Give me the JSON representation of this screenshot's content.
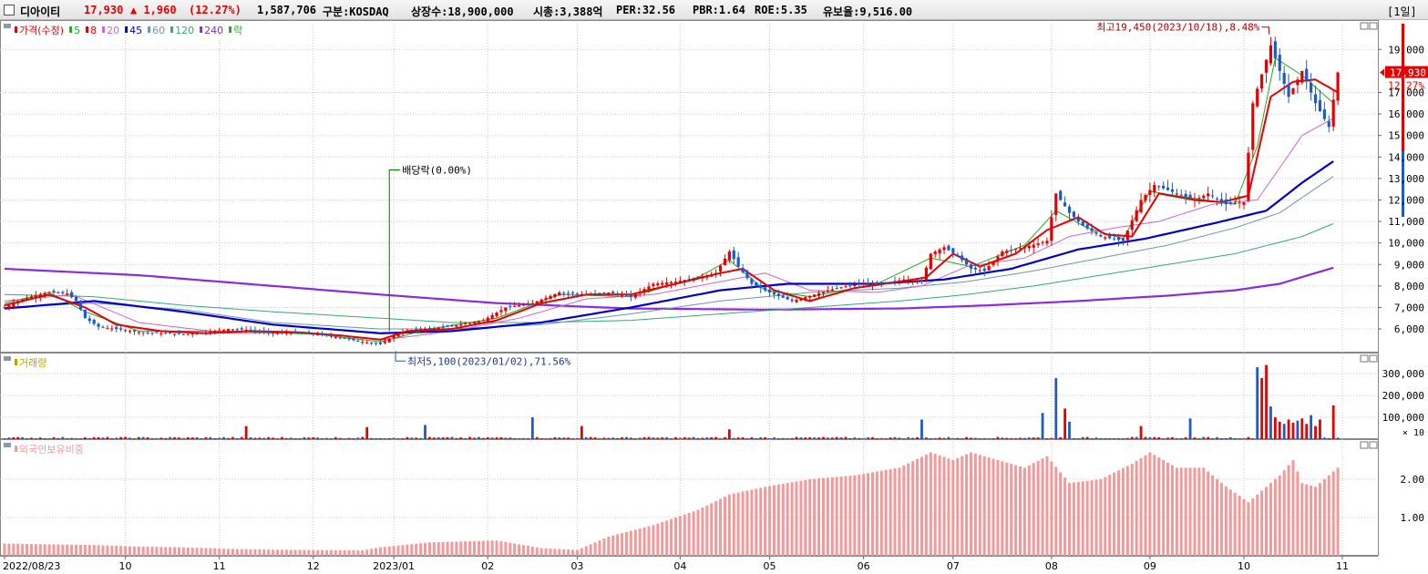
{
  "header": {
    "name": "디아이티",
    "price": "17,930",
    "change": "▲ 1,960",
    "change_pct": "(12.27%)",
    "volume": "1,587,706",
    "market": "구분:KOSDAQ",
    "listed": "상장수:18,900,000",
    "mcap": "시총:3,388억",
    "per": "PER:32.56",
    "pbr": "PBR:1.64",
    "roe": "ROE:5.35",
    "float": "유보율:9,516.00",
    "period": "[1일]"
  },
  "colors": {
    "up": "#e60000",
    "down": "#1e5bc6",
    "ma5": "#22aa22",
    "ma8": "#e60000",
    "ma20": "#cc66cc",
    "ma45": "#0000cc",
    "ma60": "#6699aa",
    "ma120": "#33aa77",
    "ma240": "#8a2be2",
    "foreign": "#f29a9a",
    "grid": "#c8c8c8"
  },
  "chart_data": [
    {
      "type": "line",
      "name": "price",
      "legend": [
        {
          "label": "가격(수정)",
          "color": "#e60000"
        },
        {
          "label": "5",
          "color": "#22aa22"
        },
        {
          "label": "8",
          "color": "#e60000"
        },
        {
          "label": "20",
          "color": "#cc66cc"
        },
        {
          "label": "45",
          "color": "#0000cc"
        },
        {
          "label": "60",
          "color": "#6699aa"
        },
        {
          "label": "120",
          "color": "#33aa77"
        },
        {
          "label": "240",
          "color": "#8a2be2"
        },
        {
          "label": "락",
          "color": "#22aa22"
        }
      ],
      "y_ticks": [
        6000,
        7000,
        8000,
        9000,
        10000,
        11000,
        12000,
        13000,
        14000,
        15000,
        16000,
        17000,
        19000
      ],
      "y_tick_labels": [
        "6,000",
        "7,000",
        "8,000",
        "9,000",
        "10,000",
        "11,000",
        "12,000",
        "13,000",
        "14,000",
        "15,000",
        "16,000",
        "17,000",
        "19,000"
      ],
      "ylim": [
        4900,
        20200
      ],
      "last_price": 17930,
      "last_label": "17,930",
      "last_pct_label": "12.27%",
      "high_annotation": {
        "text": "최고19,450(2023/10/18),8.48%",
        "value": 19450
      },
      "low_annotation": {
        "text": "최저5,100(2023/01/02),71.56%",
        "value": 5100
      },
      "event_annotation": {
        "text": "배당락(0.00%)"
      },
      "price_path": [
        [
          0,
          7000
        ],
        [
          3,
          7300
        ],
        [
          6,
          7500
        ],
        [
          10,
          7700
        ],
        [
          14,
          7650
        ],
        [
          16,
          7300
        ],
        [
          18,
          6500
        ],
        [
          21,
          6100
        ],
        [
          25,
          6000
        ],
        [
          30,
          5850
        ],
        [
          35,
          5800
        ],
        [
          40,
          5750
        ],
        [
          45,
          5850
        ],
        [
          50,
          6000
        ],
        [
          55,
          5950
        ],
        [
          60,
          5800
        ],
        [
          65,
          5850
        ],
        [
          70,
          5750
        ],
        [
          75,
          5600
        ],
        [
          80,
          5400
        ],
        [
          84,
          5300
        ],
        [
          88,
          5800
        ],
        [
          92,
          6000
        ],
        [
          97,
          6050
        ],
        [
          102,
          6200
        ],
        [
          107,
          6400
        ],
        [
          112,
          7000
        ],
        [
          118,
          7200
        ],
        [
          124,
          7700
        ],
        [
          130,
          7600
        ],
        [
          135,
          7700
        ],
        [
          140,
          7500
        ],
        [
          145,
          8100
        ],
        [
          150,
          8200
        ],
        [
          155,
          8400
        ],
        [
          159,
          8600
        ],
        [
          162,
          9600
        ],
        [
          164,
          8900
        ],
        [
          167,
          8100
        ],
        [
          172,
          7600
        ],
        [
          176,
          7300
        ],
        [
          181,
          7600
        ],
        [
          186,
          7900
        ],
        [
          191,
          8100
        ],
        [
          196,
          8100
        ],
        [
          201,
          8300
        ],
        [
          205,
          8200
        ],
        [
          207,
          9500
        ],
        [
          210,
          9800
        ],
        [
          213,
          9400
        ],
        [
          216,
          8800
        ],
        [
          219,
          8700
        ],
        [
          223,
          9600
        ],
        [
          228,
          9800
        ],
        [
          233,
          10100
        ],
        [
          235,
          12300
        ],
        [
          238,
          11400
        ],
        [
          241,
          10800
        ],
        [
          245,
          10300
        ],
        [
          250,
          10100
        ],
        [
          254,
          12000
        ],
        [
          257,
          12700
        ],
        [
          262,
          12300
        ],
        [
          266,
          12000
        ],
        [
          269,
          12300
        ],
        [
          273,
          11800
        ],
        [
          277,
          11900
        ],
        [
          279,
          16500
        ],
        [
          283,
          19200
        ],
        [
          287,
          16800
        ],
        [
          290,
          18000
        ],
        [
          293,
          16500
        ],
        [
          296,
          15400
        ],
        [
          298,
          17930
        ]
      ],
      "ma8_path": [
        [
          0,
          7100
        ],
        [
          10,
          7600
        ],
        [
          18,
          7000
        ],
        [
          25,
          6200
        ],
        [
          35,
          5900
        ],
        [
          45,
          5800
        ],
        [
          55,
          5900
        ],
        [
          65,
          5850
        ],
        [
          75,
          5700
        ],
        [
          84,
          5500
        ],
        [
          90,
          5900
        ],
        [
          100,
          6000
        ],
        [
          110,
          6400
        ],
        [
          120,
          7200
        ],
        [
          130,
          7600
        ],
        [
          140,
          7600
        ],
        [
          150,
          8100
        ],
        [
          160,
          8600
        ],
        [
          165,
          8800
        ],
        [
          172,
          7800
        ],
        [
          180,
          7300
        ],
        [
          190,
          7900
        ],
        [
          200,
          8200
        ],
        [
          206,
          8400
        ],
        [
          212,
          9500
        ],
        [
          218,
          8900
        ],
        [
          226,
          9500
        ],
        [
          233,
          10600
        ],
        [
          240,
          11200
        ],
        [
          246,
          10400
        ],
        [
          252,
          10300
        ],
        [
          258,
          12300
        ],
        [
          266,
          12000
        ],
        [
          272,
          11900
        ],
        [
          278,
          12200
        ],
        [
          283,
          16800
        ],
        [
          288,
          17500
        ],
        [
          293,
          17600
        ],
        [
          298,
          17000
        ]
      ],
      "ma5_path": [
        [
          0,
          7200
        ],
        [
          10,
          7700
        ],
        [
          18,
          6800
        ],
        [
          30,
          5900
        ],
        [
          50,
          5900
        ],
        [
          70,
          5750
        ],
        [
          84,
          5400
        ],
        [
          95,
          6000
        ],
        [
          110,
          6500
        ],
        [
          124,
          7600
        ],
        [
          140,
          7500
        ],
        [
          155,
          8400
        ],
        [
          162,
          9200
        ],
        [
          170,
          7800
        ],
        [
          180,
          7500
        ],
        [
          195,
          8100
        ],
        [
          207,
          9300
        ],
        [
          216,
          8900
        ],
        [
          228,
          9900
        ],
        [
          235,
          11500
        ],
        [
          242,
          10700
        ],
        [
          250,
          10200
        ],
        [
          256,
          12400
        ],
        [
          265,
          12100
        ],
        [
          275,
          11800
        ],
        [
          280,
          14500
        ],
        [
          284,
          18600
        ],
        [
          290,
          17800
        ],
        [
          297,
          16500
        ]
      ],
      "ma20_path": [
        [
          0,
          7300
        ],
        [
          15,
          7600
        ],
        [
          30,
          6300
        ],
        [
          50,
          5800
        ],
        [
          70,
          5800
        ],
        [
          85,
          5500
        ],
        [
          100,
          5900
        ],
        [
          115,
          6500
        ],
        [
          130,
          7400
        ],
        [
          145,
          7600
        ],
        [
          160,
          8200
        ],
        [
          170,
          8600
        ],
        [
          180,
          7800
        ],
        [
          195,
          7700
        ],
        [
          205,
          8000
        ],
        [
          215,
          8900
        ],
        [
          228,
          9300
        ],
        [
          238,
          10300
        ],
        [
          248,
          10700
        ],
        [
          258,
          11000
        ],
        [
          270,
          11800
        ],
        [
          280,
          12000
        ],
        [
          290,
          15000
        ],
        [
          297,
          15800
        ]
      ],
      "ma45_path": [
        [
          0,
          6950
        ],
        [
          20,
          7300
        ],
        [
          40,
          6800
        ],
        [
          60,
          6200
        ],
        [
          84,
          5800
        ],
        [
          100,
          5900
        ],
        [
          120,
          6300
        ],
        [
          140,
          7000
        ],
        [
          160,
          7800
        ],
        [
          175,
          8100
        ],
        [
          195,
          8100
        ],
        [
          210,
          8300
        ],
        [
          225,
          8800
        ],
        [
          240,
          9700
        ],
        [
          255,
          10200
        ],
        [
          270,
          10900
        ],
        [
          282,
          11500
        ],
        [
          290,
          12800
        ],
        [
          297,
          13800
        ]
      ],
      "ma60_path": [
        [
          0,
          7000
        ],
        [
          20,
          7200
        ],
        [
          40,
          6900
        ],
        [
          60,
          6300
        ],
        [
          84,
          6000
        ],
        [
          100,
          6000
        ],
        [
          120,
          6200
        ],
        [
          140,
          6700
        ],
        [
          160,
          7300
        ],
        [
          180,
          7700
        ],
        [
          200,
          7900
        ],
        [
          215,
          8200
        ],
        [
          230,
          8700
        ],
        [
          245,
          9300
        ],
        [
          260,
          9900
        ],
        [
          275,
          10700
        ],
        [
          285,
          11400
        ],
        [
          297,
          13100
        ]
      ],
      "ma120_path": [
        [
          0,
          7600
        ],
        [
          20,
          7500
        ],
        [
          40,
          7100
        ],
        [
          60,
          6800
        ],
        [
          84,
          6500
        ],
        [
          100,
          6300
        ],
        [
          120,
          6300
        ],
        [
          140,
          6400
        ],
        [
          160,
          6700
        ],
        [
          180,
          7000
        ],
        [
          200,
          7300
        ],
        [
          215,
          7600
        ],
        [
          230,
          8000
        ],
        [
          245,
          8500
        ],
        [
          260,
          9000
        ],
        [
          275,
          9500
        ],
        [
          290,
          10300
        ],
        [
          297,
          10900
        ]
      ],
      "ma240_path": [
        [
          0,
          8800
        ],
        [
          30,
          8500
        ],
        [
          60,
          8000
        ],
        [
          84,
          7600
        ],
        [
          110,
          7200
        ],
        [
          140,
          6950
        ],
        [
          170,
          6900
        ],
        [
          200,
          6950
        ],
        [
          220,
          7100
        ],
        [
          240,
          7300
        ],
        [
          260,
          7550
        ],
        [
          275,
          7800
        ],
        [
          285,
          8100
        ],
        [
          297,
          8850
        ]
      ]
    },
    {
      "type": "bar",
      "name": "volume",
      "legend": [
        {
          "label": "거래량",
          "color": "#bba000"
        }
      ],
      "y_ticks": [
        100000,
        200000,
        300000
      ],
      "y_tick_labels": [
        "100,000",
        "200,000",
        "300,000"
      ],
      "unit_label": "× 10",
      "ylim": [
        0,
        380000
      ],
      "base_volume": 8000,
      "spikes": [
        [
          54,
          60000
        ],
        [
          81,
          55000
        ],
        [
          94,
          65000
        ],
        [
          118,
          100000
        ],
        [
          129,
          60000
        ],
        [
          162,
          45000
        ],
        [
          205,
          90000
        ],
        [
          232,
          120000
        ],
        [
          235,
          280000
        ],
        [
          237,
          140000
        ],
        [
          238,
          80000
        ],
        [
          254,
          60000
        ],
        [
          265,
          95000
        ],
        [
          280,
          330000
        ],
        [
          281,
          280000
        ],
        [
          282,
          340000
        ],
        [
          283,
          150000
        ],
        [
          284,
          100000
        ],
        [
          285,
          80000
        ],
        [
          286,
          70000
        ],
        [
          287,
          90000
        ],
        [
          288,
          75000
        ],
        [
          289,
          85000
        ],
        [
          290,
          95000
        ],
        [
          291,
          70000
        ],
        [
          292,
          110000
        ],
        [
          293,
          60000
        ],
        [
          294,
          90000
        ],
        [
          297,
          155000
        ]
      ]
    },
    {
      "type": "bar",
      "name": "foreign_ownership",
      "legend": [
        {
          "label": "외국인보유비중",
          "color": "#f29a9a"
        }
      ],
      "y_ticks": [
        1.0,
        2.0
      ],
      "y_tick_labels": [
        "1.00",
        "2.00"
      ],
      "ylim": [
        0,
        2.95
      ],
      "level_path": [
        [
          0,
          0.32
        ],
        [
          10,
          0.3
        ],
        [
          20,
          0.28
        ],
        [
          30,
          0.24
        ],
        [
          40,
          0.22
        ],
        [
          50,
          0.18
        ],
        [
          60,
          0.16
        ],
        [
          70,
          0.15
        ],
        [
          80,
          0.14
        ],
        [
          84,
          0.22
        ],
        [
          95,
          0.35
        ],
        [
          110,
          0.4
        ],
        [
          120,
          0.2
        ],
        [
          128,
          0.15
        ],
        [
          135,
          0.5
        ],
        [
          145,
          0.8
        ],
        [
          155,
          1.2
        ],
        [
          162,
          1.6
        ],
        [
          170,
          1.8
        ],
        [
          180,
          2.0
        ],
        [
          190,
          2.1
        ],
        [
          200,
          2.3
        ],
        [
          207,
          2.7
        ],
        [
          212,
          2.5
        ],
        [
          216,
          2.7
        ],
        [
          222,
          2.5
        ],
        [
          228,
          2.3
        ],
        [
          233,
          2.6
        ],
        [
          238,
          1.9
        ],
        [
          245,
          2.0
        ],
        [
          252,
          2.4
        ],
        [
          256,
          2.7
        ],
        [
          262,
          2.3
        ],
        [
          268,
          2.3
        ],
        [
          272,
          1.9
        ],
        [
          278,
          1.4
        ],
        [
          282,
          1.8
        ],
        [
          285,
          2.1
        ],
        [
          288,
          2.5
        ],
        [
          290,
          1.9
        ],
        [
          293,
          1.8
        ],
        [
          298,
          2.3
        ]
      ]
    }
  ],
  "x_axis": {
    "labels": [
      "2022/08/23",
      "10",
      "11",
      "12",
      "2023/01",
      "02",
      "03",
      "04",
      "05",
      "06",
      "07",
      "08",
      "09",
      "10",
      "11"
    ],
    "positions": [
      0,
      27,
      48,
      69,
      87,
      108,
      128,
      151,
      171,
      192,
      212,
      234,
      256,
      277,
      299
    ]
  }
}
